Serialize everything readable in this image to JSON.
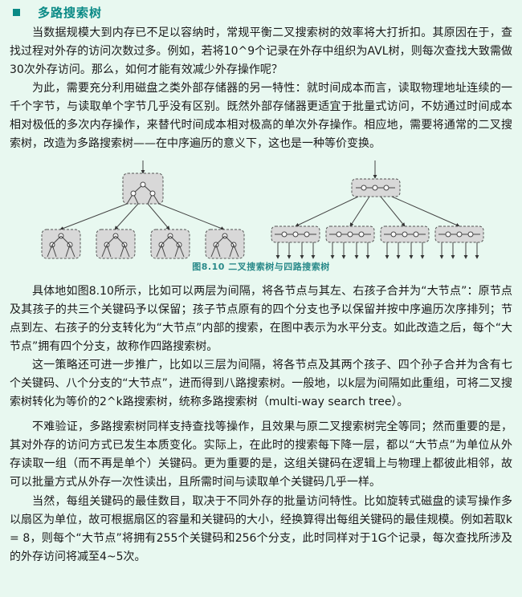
{
  "section": {
    "title": "多路搜索树"
  },
  "paragraphs": [
    "当数据规模大到内存已不足以容纳时，常规平衡二叉搜索树的效率将大打折扣。其原因在于，查找过程对外存的访问次数过多。例如，若将10^9个记录在外存中组织为AVL树，则每次查找大致需做30次外存访问。那么，如何才能有效减少外存操作呢？",
    "为此，需要充分利用磁盘之类外部存储器的另一特性：就时间成本而言，读取物理地址连续的一千个字节，与读取单个字节几乎没有区别。既然外部存储器更适宜于批量式访问，不妨通过时间成本相对极低的多次内存操作，来替代时间成本相对极高的单次外存操作。相应地，需要将通常的二叉搜索树，改造为多路搜索树——在中序遍历的意义下，这也是一种等价变换。",
    "具体地如图8.10所示，比如可以两层为间隔，将各节点与其左、右孩子合并为“大节点”：原节点及其孩子的共三个关键码予以保留；孩子节点原有的四个分支也予以保留并按中序遍历次序排列；节点到左、右孩子的分支转化为“大节点”内部的搜索，在图中表示为水平分支。如此改造之后，每个“大节点”拥有四个分支，故称作四路搜索树。",
    "这一策略还可进一步推广，比如以三层为间隔，将各节点及其两个孩子、四个孙子合并为含有七个关键码、八个分支的“大节点”，进而得到八路搜索树。一般地，以k层为间隔如此重组，可将二叉搜索树转化为等价的2^k路搜索树，统称多路搜索树（multi-way search tree）。",
    "不难验证，多路搜索树同样支持查找等操作，且效果与原二叉搜索树完全等同；然而重要的是，其对外存的访问方式已发生本质变化。实际上，在此时的搜索每下降一层，都以“大节点”为单位从外存读取一组（而不再是单个）关键码。更为重要的是，这组关键码在逻辑上与物理上都彼此相邻，故可以批量方式从外存一次性读出，且所需时间与读取单个关键码几乎一样。",
    "当然，每组关键码的最佳数目，取决于不同外存的批量访问特性。比如旋转式磁盘的读写操作多以扇区为单位，故可根据扇区的容量和关键码的大小，经换算得出每组关键码的最佳规模。例如若取k = 8，则每个“大节点”将拥有255个关键码和256个分支，此时同样对于1G个记录，每次查找所涉及的外存访问将减至4~5次。"
  ],
  "figure": {
    "caption": "图8.10  二叉搜索树与四路搜索树"
  }
}
